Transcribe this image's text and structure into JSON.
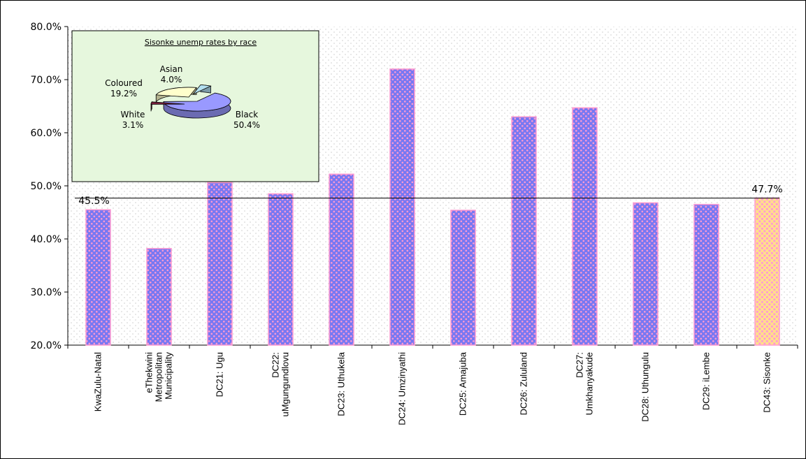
{
  "chart_data": [
    {
      "type": "bar",
      "title": "",
      "xlabel": "",
      "ylabel": "",
      "ylim": [
        0.2,
        0.8
      ],
      "ytick_labels": [
        "20.0%",
        "30.0%",
        "40.0%",
        "50.0%",
        "60.0%",
        "70.0%",
        "80.0%"
      ],
      "y_tick_values": [
        0.2,
        0.3,
        0.4,
        0.5,
        0.6,
        0.7,
        0.8
      ],
      "categories": [
        [
          "KwaZulu-Natal"
        ],
        [
          "eThekwini",
          "Metropolitan",
          "Municipality"
        ],
        [
          "DC21: Ugu"
        ],
        [
          "DC22:",
          "uMgungundlovu"
        ],
        [
          "DC23: Uthukela"
        ],
        [
          "DC24: Umzinyathi"
        ],
        [
          "DC25: Amajuba"
        ],
        [
          "DC26: Zululand"
        ],
        [
          "DC27:",
          "Umkhanyakude"
        ],
        [
          "DC28: Uthungulu"
        ],
        [
          "DC29: iLembe"
        ],
        [
          "DC43: Sisonke"
        ]
      ],
      "values": [
        0.455,
        0.382,
        0.506,
        0.485,
        0.522,
        0.72,
        0.454,
        0.63,
        0.647,
        0.468,
        0.465,
        0.477
      ],
      "highlight_index": 11,
      "reference_line": 0.477,
      "data_labels": [
        {
          "index": 0,
          "text": "45.5%"
        },
        {
          "index": 11,
          "text": "47.7%"
        }
      ],
      "grid": "dotted background",
      "colors": {
        "bar": "#7b7bf5",
        "bar_dot": "#ff99cc",
        "highlight": "#ffe08a",
        "highlight_dot": "#ff99cc",
        "reference": "#000000"
      }
    },
    {
      "type": "pie",
      "title": "Sisonke unemp rates by race",
      "slices": [
        {
          "label": "Black",
          "value": 50.4,
          "text": "50.4%",
          "color": "#9999ff"
        },
        {
          "label": "White",
          "value": 3.1,
          "text": "3.1%",
          "color": "#7a1f3d"
        },
        {
          "label": "Coloured",
          "value": 19.2,
          "text": "19.2%",
          "color": "#ffffcc"
        },
        {
          "label": "Asian",
          "value": 4.0,
          "text": "4.0%",
          "color": "#b3e0f0"
        }
      ],
      "background": "#e6f7dd"
    }
  ]
}
